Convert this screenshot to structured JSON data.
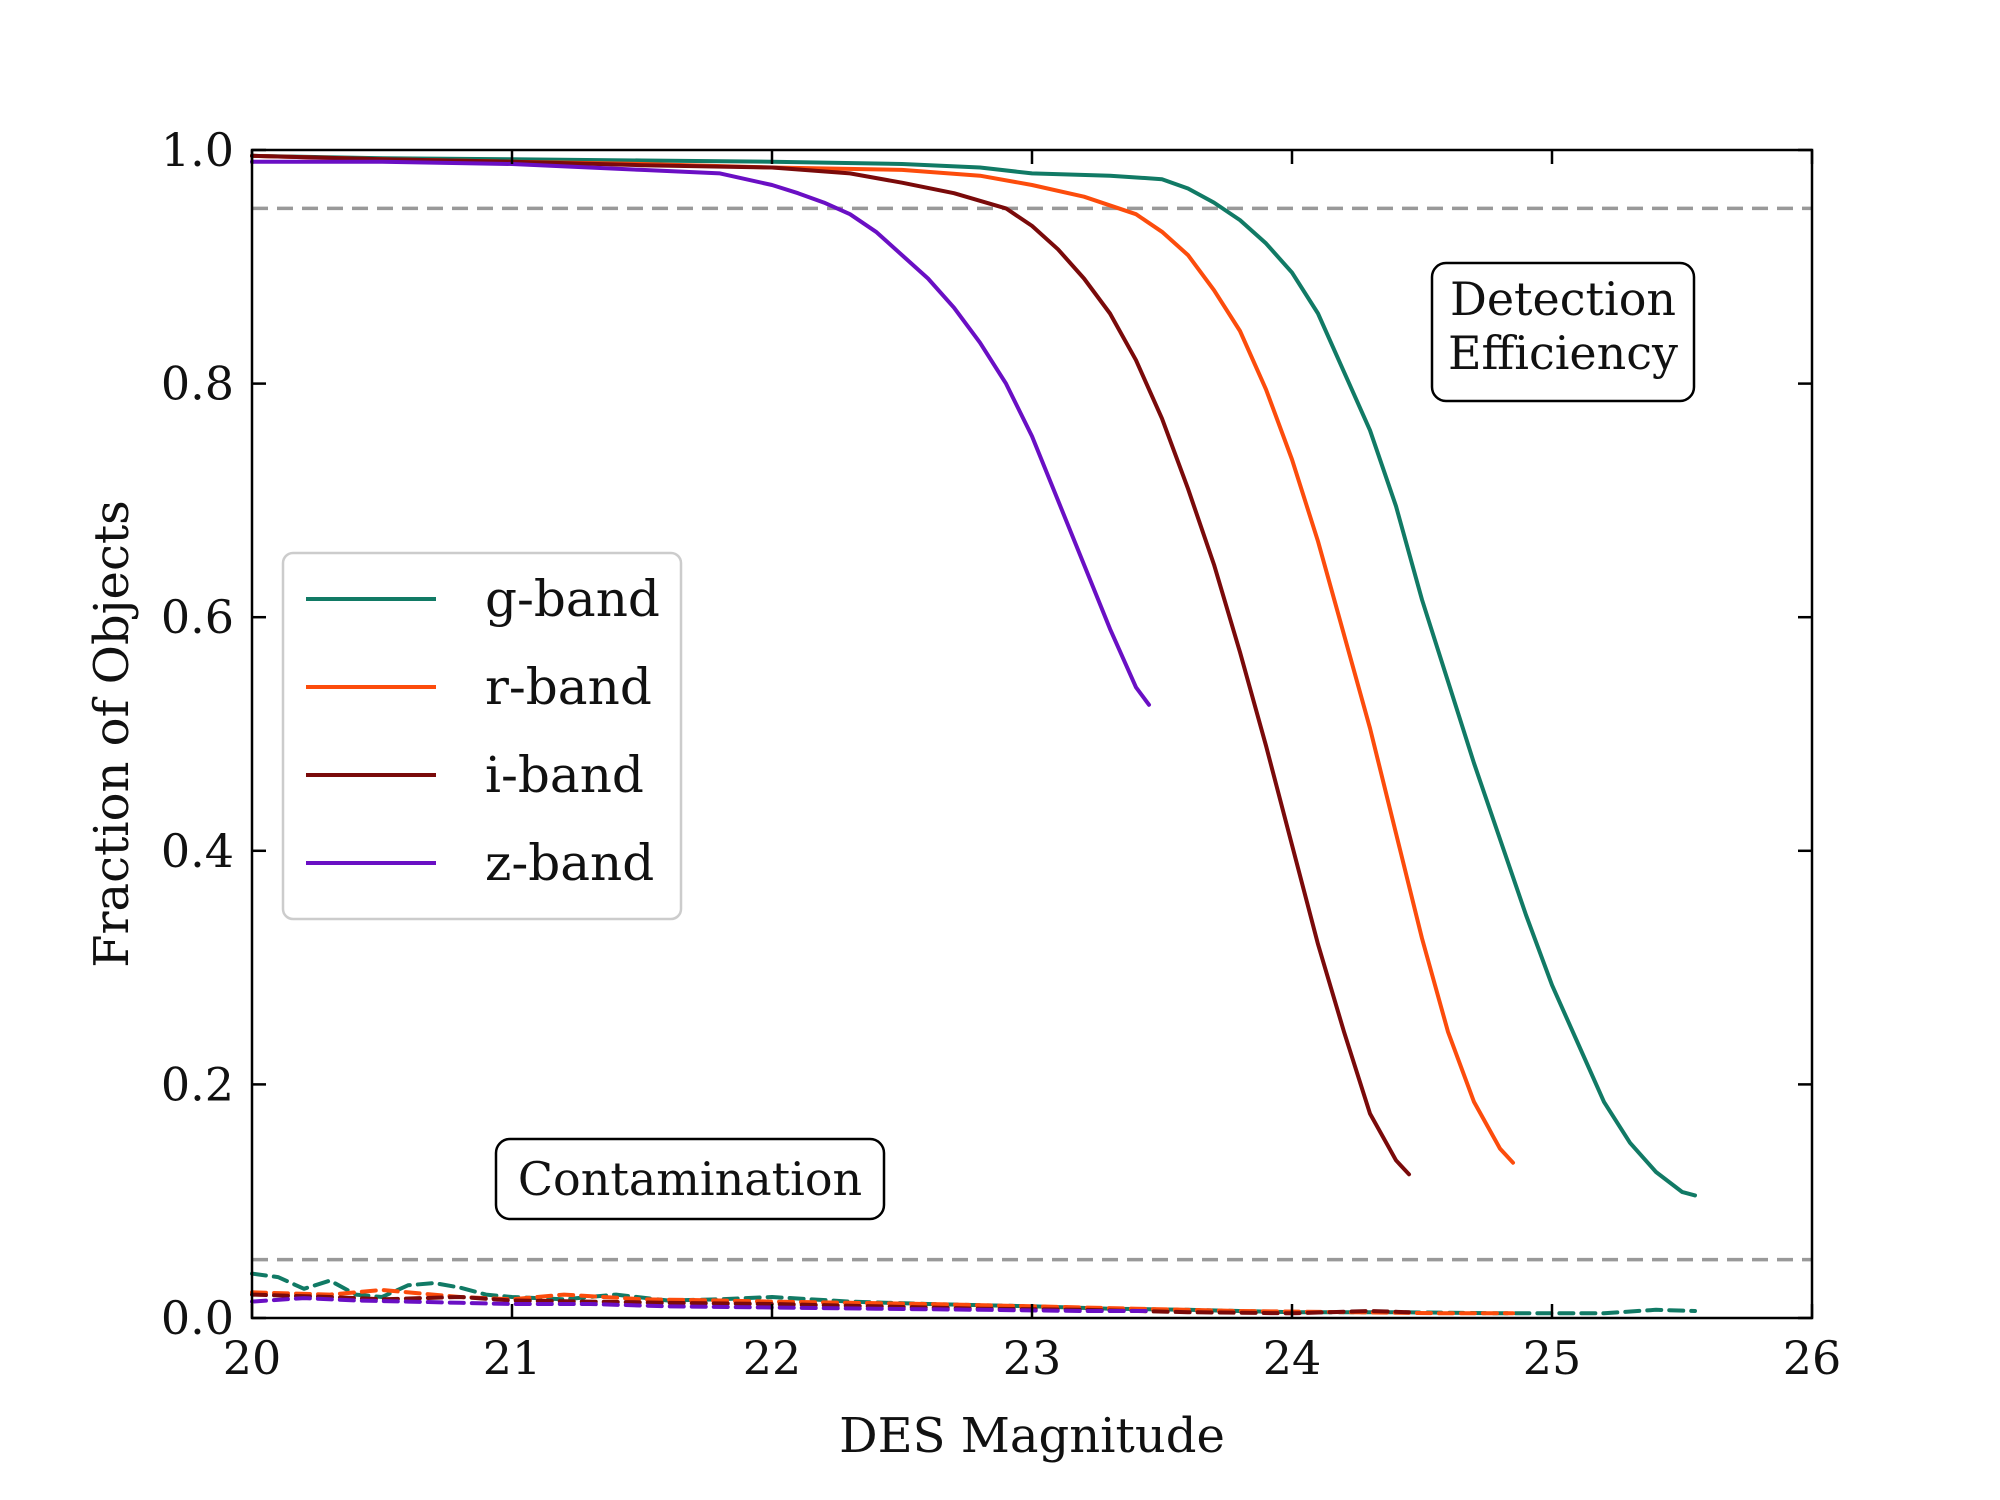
{
  "chart_data": {
    "type": "line",
    "xlabel": "DES Magnitude",
    "ylabel": "Fraction of Objects",
    "xlim": [
      20,
      26
    ],
    "ylim": [
      0,
      1
    ],
    "xticks": [
      20,
      21,
      22,
      23,
      24,
      25,
      26
    ],
    "yticks": [
      0.0,
      0.2,
      0.4,
      0.6,
      0.8,
      1.0
    ],
    "xtick_labels": [
      "20",
      "21",
      "22",
      "23",
      "24",
      "25",
      "26"
    ],
    "ytick_labels": [
      "0.0",
      "0.2",
      "0.4",
      "0.6",
      "0.8",
      "1.0"
    ],
    "grid": false,
    "legend_placement": "center-left",
    "reference_lines": [
      0.95,
      0.05
    ],
    "annotations": [
      "Detection\nEfficiency",
      "Contamination"
    ],
    "series": [
      {
        "name": "g-band",
        "color": "#117a65",
        "role": "efficiency",
        "x": [
          20.0,
          20.5,
          21.0,
          21.5,
          22.0,
          22.5,
          22.8,
          23.0,
          23.3,
          23.5,
          23.6,
          23.7,
          23.8,
          23.9,
          24.0,
          24.1,
          24.2,
          24.3,
          24.4,
          24.5,
          24.6,
          24.7,
          24.8,
          24.9,
          25.0,
          25.1,
          25.2,
          25.3,
          25.4,
          25.5,
          25.55
        ],
        "y": [
          0.995,
          0.993,
          0.992,
          0.991,
          0.99,
          0.988,
          0.985,
          0.98,
          0.978,
          0.975,
          0.967,
          0.955,
          0.94,
          0.92,
          0.895,
          0.86,
          0.81,
          0.76,
          0.695,
          0.615,
          0.545,
          0.475,
          0.41,
          0.345,
          0.285,
          0.235,
          0.185,
          0.15,
          0.125,
          0.108,
          0.105
        ]
      },
      {
        "name": "r-band",
        "color": "#fc4c0c",
        "role": "efficiency",
        "x": [
          20.0,
          20.5,
          21.0,
          21.5,
          22.0,
          22.5,
          22.8,
          23.0,
          23.2,
          23.4,
          23.5,
          23.6,
          23.7,
          23.8,
          23.9,
          24.0,
          24.1,
          24.2,
          24.3,
          24.4,
          24.5,
          24.6,
          24.7,
          24.8,
          24.85
        ],
        "y": [
          0.995,
          0.992,
          0.99,
          0.988,
          0.985,
          0.983,
          0.978,
          0.97,
          0.96,
          0.945,
          0.93,
          0.91,
          0.88,
          0.845,
          0.795,
          0.735,
          0.665,
          0.585,
          0.505,
          0.415,
          0.325,
          0.245,
          0.185,
          0.145,
          0.133
        ]
      },
      {
        "name": "i-band",
        "color": "#7a0a0a",
        "role": "efficiency",
        "x": [
          20.0,
          20.5,
          21.0,
          21.5,
          22.0,
          22.3,
          22.5,
          22.7,
          22.9,
          23.0,
          23.1,
          23.2,
          23.3,
          23.4,
          23.5,
          23.6,
          23.7,
          23.8,
          23.9,
          24.0,
          24.1,
          24.2,
          24.3,
          24.4,
          24.45
        ],
        "y": [
          0.995,
          0.992,
          0.99,
          0.987,
          0.985,
          0.98,
          0.972,
          0.963,
          0.95,
          0.935,
          0.915,
          0.89,
          0.86,
          0.82,
          0.77,
          0.71,
          0.645,
          0.57,
          0.49,
          0.405,
          0.32,
          0.245,
          0.175,
          0.135,
          0.123
        ]
      },
      {
        "name": "z-band",
        "color": "#6a0fc4",
        "role": "efficiency",
        "x": [
          20.0,
          20.5,
          21.0,
          21.5,
          21.8,
          22.0,
          22.1,
          22.2,
          22.3,
          22.4,
          22.5,
          22.6,
          22.7,
          22.8,
          22.9,
          23.0,
          23.1,
          23.2,
          23.3,
          23.4,
          23.45
        ],
        "y": [
          0.99,
          0.99,
          0.988,
          0.983,
          0.98,
          0.97,
          0.963,
          0.955,
          0.945,
          0.93,
          0.91,
          0.89,
          0.865,
          0.835,
          0.8,
          0.755,
          0.7,
          0.645,
          0.59,
          0.54,
          0.525
        ]
      },
      {
        "name": "g-band",
        "color": "#117a65",
        "role": "contamination",
        "x": [
          20.0,
          20.1,
          20.2,
          20.3,
          20.4,
          20.5,
          20.6,
          20.7,
          20.8,
          20.9,
          21.0,
          21.2,
          21.4,
          21.6,
          21.8,
          22.0,
          22.3,
          22.6,
          23.0,
          23.3,
          23.6,
          24.0,
          24.4,
          24.8,
          25.2,
          25.4,
          25.55
        ],
        "y": [
          0.038,
          0.035,
          0.025,
          0.032,
          0.02,
          0.018,
          0.028,
          0.03,
          0.026,
          0.02,
          0.018,
          0.016,
          0.02,
          0.015,
          0.016,
          0.018,
          0.014,
          0.012,
          0.01,
          0.008,
          0.007,
          0.005,
          0.005,
          0.004,
          0.004,
          0.007,
          0.006
        ]
      },
      {
        "name": "r-band",
        "color": "#fc4c0c",
        "role": "contamination",
        "x": [
          20.0,
          20.3,
          20.5,
          20.8,
          21.0,
          21.2,
          21.5,
          21.8,
          22.0,
          22.3,
          22.6,
          23.0,
          23.4,
          23.8,
          24.2,
          24.6,
          24.85
        ],
        "y": [
          0.022,
          0.02,
          0.024,
          0.018,
          0.016,
          0.02,
          0.016,
          0.015,
          0.014,
          0.013,
          0.012,
          0.01,
          0.008,
          0.006,
          0.005,
          0.004,
          0.004
        ]
      },
      {
        "name": "i-band",
        "color": "#7a0a0a",
        "role": "contamination",
        "x": [
          20.0,
          20.3,
          20.5,
          20.8,
          21.0,
          21.3,
          21.6,
          22.0,
          22.4,
          22.8,
          23.2,
          23.6,
          24.0,
          24.3,
          24.45
        ],
        "y": [
          0.02,
          0.018,
          0.016,
          0.018,
          0.015,
          0.014,
          0.013,
          0.012,
          0.01,
          0.008,
          0.007,
          0.005,
          0.004,
          0.006,
          0.005
        ]
      },
      {
        "name": "z-band",
        "color": "#6a0fc4",
        "role": "contamination",
        "x": [
          20.0,
          20.2,
          20.4,
          20.6,
          20.8,
          21.0,
          21.3,
          21.6,
          22.0,
          22.4,
          22.8,
          23.2,
          23.45
        ],
        "y": [
          0.014,
          0.017,
          0.015,
          0.014,
          0.013,
          0.012,
          0.012,
          0.01,
          0.009,
          0.008,
          0.007,
          0.006,
          0.006
        ]
      }
    ]
  }
}
